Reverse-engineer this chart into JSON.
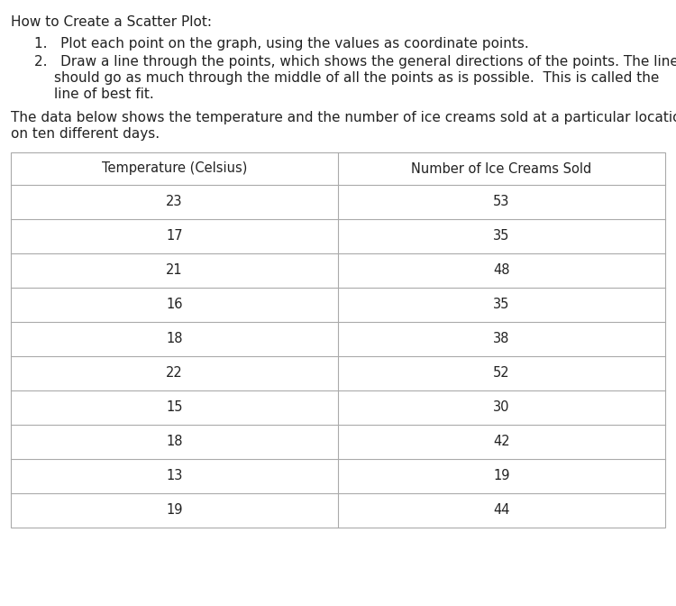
{
  "title_text": "How to Create a Scatter Plot:",
  "instruction1": "Plot each point on the graph, using the values as coordinate points.",
  "instruction2a": "Draw a line through the points, which shows the general directions of the points. The line",
  "instruction2b": "should go as much through the middle of all the points as is possible.  This is called the",
  "instruction2c": "line of best fit.",
  "desc1": "The data below shows the temperature and the number of ice creams sold at a particular location",
  "desc2": "on ten different days.",
  "col1_header": "Temperature (Celsius)",
  "col2_header": "Number of Ice Creams Sold",
  "temperatures": [
    23,
    17,
    21,
    16,
    18,
    22,
    15,
    18,
    13,
    19
  ],
  "ice_creams": [
    53,
    35,
    48,
    35,
    38,
    52,
    30,
    42,
    19,
    44
  ],
  "bg_color": "#ffffff",
  "text_color": "#222222",
  "border_color": "#aaaaaa",
  "title_fontsize": 11,
  "body_fontsize": 11,
  "table_fontsize": 10.5
}
